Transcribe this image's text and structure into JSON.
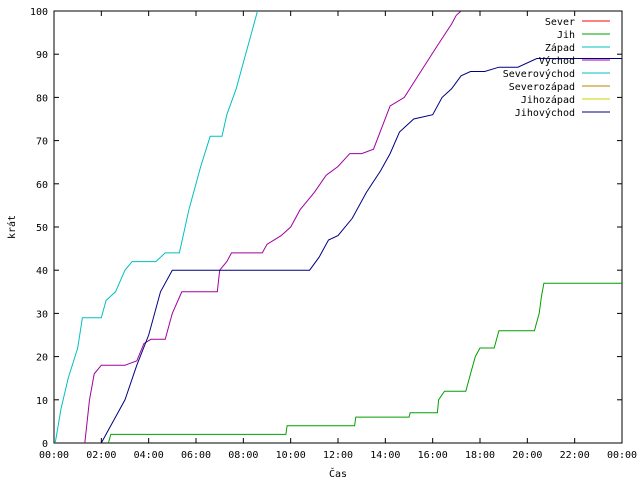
{
  "chart_data": {
    "type": "line",
    "title": "",
    "xlabel": "Čas",
    "ylabel": "krát",
    "xlim": [
      0,
      24
    ],
    "ylim": [
      0,
      100
    ],
    "x_ticks": [
      0,
      2,
      4,
      6,
      8,
      10,
      12,
      14,
      16,
      18,
      20,
      22,
      24
    ],
    "x_tick_labels": [
      "00:00",
      "02:00",
      "04:00",
      "06:00",
      "08:00",
      "10:00",
      "12:00",
      "14:00",
      "16:00",
      "18:00",
      "20:00",
      "22:00",
      "00:00"
    ],
    "y_ticks": [
      0,
      10,
      20,
      30,
      40,
      50,
      60,
      70,
      80,
      90,
      100
    ],
    "y_tick_labels": [
      "0",
      "10",
      "20",
      "30",
      "40",
      "50",
      "60",
      "70",
      "80",
      "90",
      "100"
    ],
    "grid": false,
    "legend_position": "top-right",
    "series": [
      {
        "name": "Sever",
        "color": "#ff0000",
        "x": [],
        "y": []
      },
      {
        "name": "Jih",
        "color": "#00a000",
        "x": [
          2.3,
          2.4,
          9.8,
          9.85,
          12.7,
          12.75,
          15.0,
          15.05,
          16.2,
          16.25,
          16.5,
          17.4,
          17.6,
          17.8,
          18.0,
          18.6,
          18.8,
          20.3,
          20.5,
          20.6,
          20.7,
          24.0
        ],
        "y": [
          0,
          2,
          2,
          4,
          4,
          6,
          6,
          7,
          7,
          10,
          12,
          12,
          16,
          20,
          22,
          22,
          26,
          26,
          30,
          34,
          37,
          37
        ]
      },
      {
        "name": "Západ",
        "color": "#00c0c0",
        "x": [
          0.05,
          0.3,
          0.6,
          1.0,
          1.2,
          2.0,
          2.2,
          2.6,
          3.0,
          3.3,
          3.6,
          4.3,
          4.7,
          5.3,
          5.7,
          6.2,
          6.6,
          7.1,
          7.3,
          7.7,
          8.0,
          8.4,
          8.6
        ],
        "y": [
          0,
          8,
          15,
          22,
          29,
          29,
          33,
          35,
          40,
          42,
          42,
          42,
          44,
          44,
          54,
          64,
          71,
          71,
          76,
          82,
          88,
          96,
          100
        ]
      },
      {
        "name": "Východ",
        "color": "#a000a0",
        "x": [
          1.3,
          1.5,
          1.7,
          2.0,
          3.0,
          3.5,
          3.8,
          4.1,
          4.7,
          5.0,
          5.4,
          6.9,
          7.0,
          7.3,
          7.5,
          8.8,
          9.0,
          9.6,
          10.0,
          10.4,
          11.0,
          11.5,
          12.0,
          12.5,
          13.0,
          13.5,
          14.2,
          14.8,
          15.5,
          16.2,
          16.8,
          17.0,
          17.2
        ],
        "y": [
          0,
          10,
          16,
          18,
          18,
          19,
          23,
          24,
          24,
          30,
          35,
          35,
          40,
          42,
          44,
          44,
          46,
          48,
          50,
          54,
          58,
          62,
          64,
          67,
          67,
          68,
          78,
          80,
          86,
          92,
          97,
          99,
          100
        ]
      },
      {
        "name": "Severovýchod",
        "color": "#00c0c0",
        "x": [],
        "y": []
      },
      {
        "name": "Severozápad",
        "color": "#c08000",
        "x": [],
        "y": []
      },
      {
        "name": "Jihozápad",
        "color": "#d0d000",
        "x": [],
        "y": []
      },
      {
        "name": "Jihovýchod",
        "color": "#000080",
        "x": [
          2.0,
          2.3,
          2.6,
          3.0,
          3.5,
          4.0,
          4.5,
          5.0,
          10.8,
          11.2,
          11.6,
          12.0,
          12.6,
          13.2,
          13.8,
          14.2,
          14.6,
          15.2,
          16.0,
          16.4,
          16.8,
          17.2,
          17.6,
          18.2,
          18.8,
          19.6,
          20.4,
          21.0,
          24.0
        ],
        "y": [
          0,
          3,
          6,
          10,
          18,
          25,
          35,
          40,
          40,
          43,
          47,
          48,
          52,
          58,
          63,
          67,
          72,
          75,
          76,
          80,
          82,
          85,
          86,
          86,
          87,
          87,
          89,
          89,
          89
        ]
      }
    ]
  }
}
